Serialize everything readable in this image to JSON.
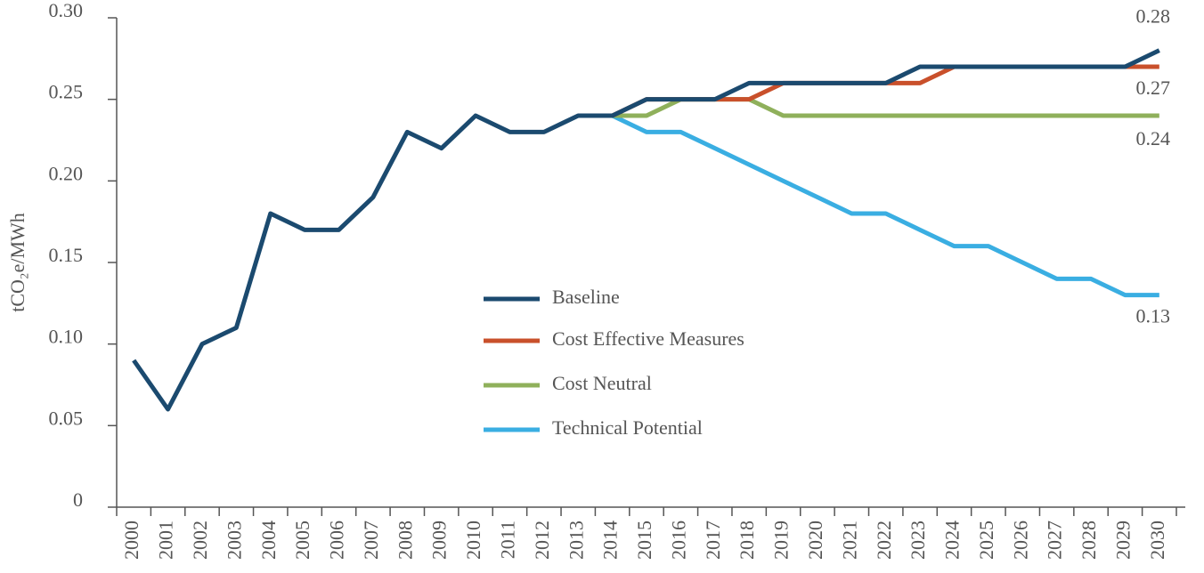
{
  "chart_data": {
    "type": "line",
    "y_label": "tCO₂e/MWh",
    "categories": [
      "2000",
      "2001",
      "2002",
      "2003",
      "2004",
      "2005",
      "2006",
      "2007",
      "2008",
      "2009",
      "2010",
      "2011",
      "2012",
      "2013",
      "2014",
      "2015",
      "2016",
      "2017",
      "2018",
      "2019",
      "2020",
      "2021",
      "2022",
      "2023",
      "2024",
      "2025",
      "2026",
      "2027",
      "2028",
      "2029",
      "2030"
    ],
    "series": [
      {
        "name": "Baseline",
        "color": "#1b4a6f",
        "values": [
          0.09,
          0.06,
          0.1,
          0.11,
          0.18,
          0.17,
          0.17,
          0.19,
          0.23,
          0.22,
          0.24,
          0.23,
          0.23,
          0.24,
          0.24,
          0.25,
          0.25,
          0.25,
          0.26,
          0.26,
          0.26,
          0.26,
          0.26,
          0.27,
          0.27,
          0.27,
          0.27,
          0.27,
          0.27,
          0.27,
          0.28
        ]
      },
      {
        "name": "Cost Effective Measures",
        "color": "#c9502b",
        "values": [
          null,
          null,
          null,
          null,
          null,
          null,
          null,
          null,
          null,
          null,
          null,
          null,
          null,
          null,
          0.24,
          0.25,
          0.25,
          0.25,
          0.25,
          0.26,
          0.26,
          0.26,
          0.26,
          0.26,
          0.27,
          0.27,
          0.27,
          0.27,
          0.27,
          0.27,
          0.27
        ]
      },
      {
        "name": "Cost Neutral",
        "color": "#8fb05b",
        "values": [
          null,
          null,
          null,
          null,
          null,
          null,
          null,
          null,
          null,
          null,
          null,
          null,
          null,
          null,
          0.24,
          0.24,
          0.25,
          0.25,
          0.25,
          0.24,
          0.24,
          0.24,
          0.24,
          0.24,
          0.24,
          0.24,
          0.24,
          0.24,
          0.24,
          0.24,
          0.24
        ]
      },
      {
        "name": "Technical Potential",
        "color": "#3aaee2",
        "values": [
          null,
          null,
          null,
          null,
          null,
          null,
          null,
          null,
          null,
          null,
          null,
          null,
          null,
          null,
          0.24,
          0.23,
          0.23,
          0.22,
          0.21,
          0.2,
          0.19,
          0.18,
          0.18,
          0.17,
          0.16,
          0.16,
          0.15,
          0.14,
          0.14,
          0.13,
          0.13
        ]
      }
    ],
    "ylim": [
      0,
      0.3
    ],
    "yticks": [
      0,
      0.05,
      {
        "value": 0.1,
        "label": "0.10"
      },
      0.15,
      {
        "value": 0.2,
        "label": "0.20"
      },
      0.25,
      {
        "value": 0.3,
        "label": "0.30"
      }
    ],
    "grid": false
  }
}
